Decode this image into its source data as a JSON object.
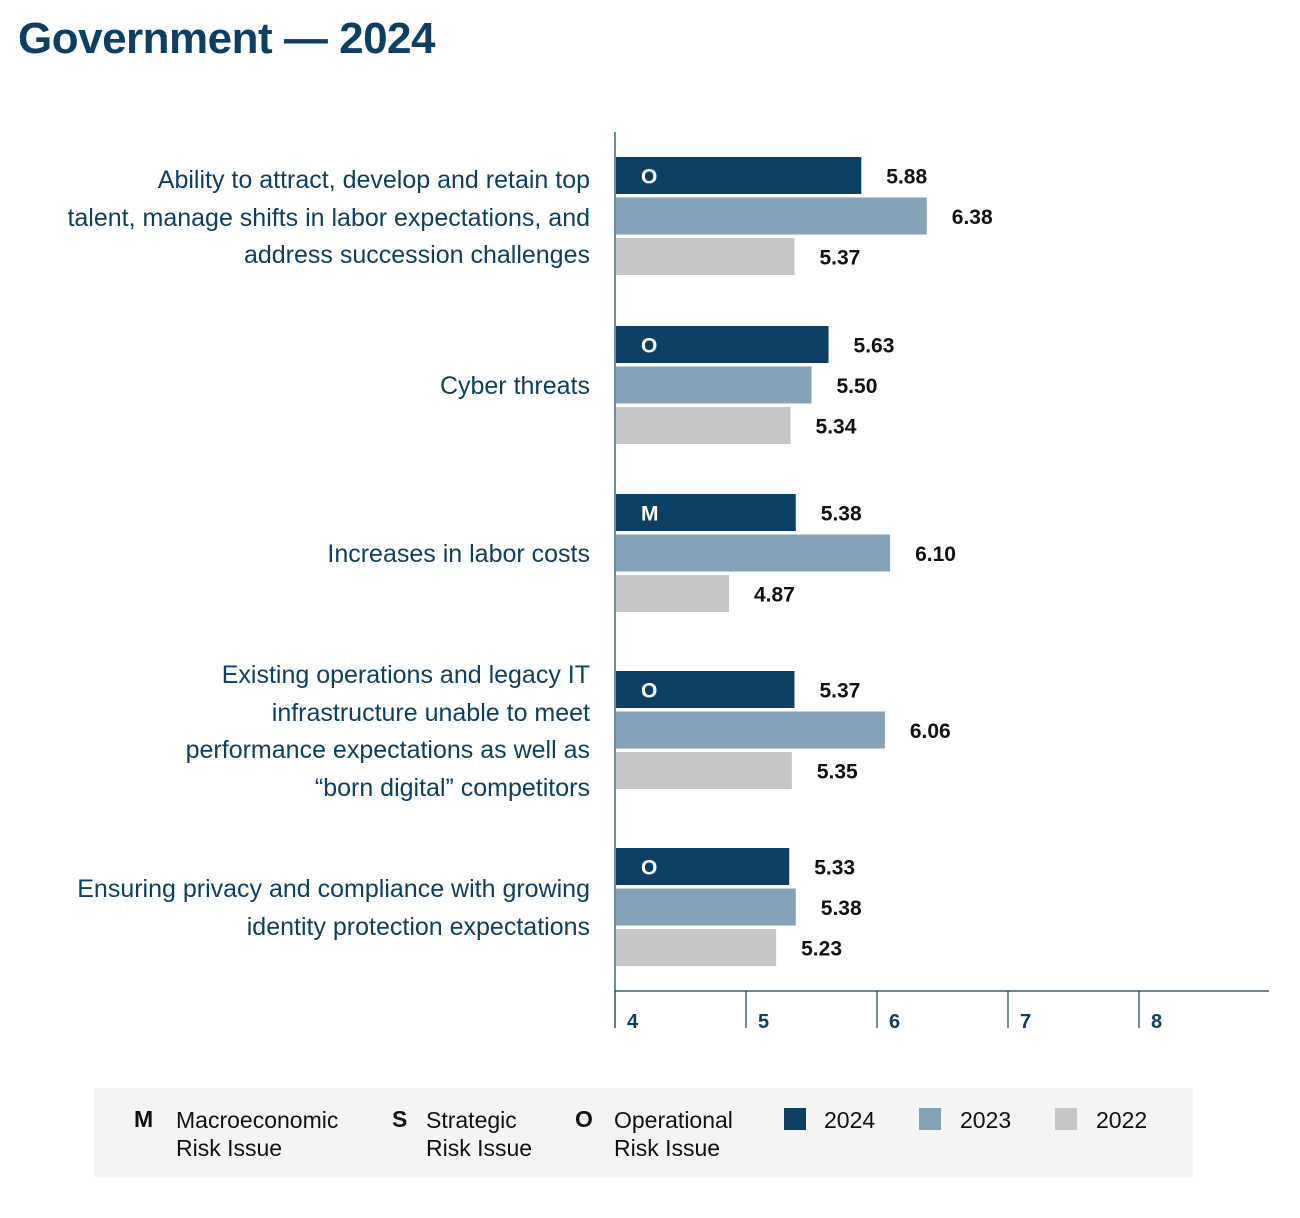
{
  "title": "Government — 2024",
  "chart_data": {
    "type": "bar",
    "orientation": "horizontal",
    "title": "Government — 2024",
    "categories": [
      "Ability to attract, develop and retain top talent, manage shifts in labor expectations, and address succession challenges",
      "Cyber threats",
      "Increases in labor costs",
      "Existing operations and legacy IT infrastructure unable to meet performance expectations as well as “born digital” competitors",
      "Ensuring privacy and compliance with growing identity protection expectations"
    ],
    "category_lines": [
      [
        "Ability to attract, develop and retain top",
        "talent, manage shifts in labor expectations, and",
        "address succession challenges"
      ],
      [
        "Cyber threats"
      ],
      [
        "Increases in labor costs"
      ],
      [
        "Existing operations and legacy IT",
        "infrastructure unable to meet",
        "performance expectations as well as",
        "“born digital” competitors"
      ],
      [
        "Ensuring privacy and compliance with growing",
        "identity protection expectations"
      ]
    ],
    "risk_types": [
      "O",
      "O",
      "M",
      "O",
      "O"
    ],
    "series": [
      {
        "name": "2024",
        "color": "#0d3f63",
        "values": [
          5.88,
          5.63,
          5.38,
          5.37,
          5.33
        ],
        "labels": [
          "5.88",
          "5.63",
          "5.38",
          "5.37",
          "5.33"
        ]
      },
      {
        "name": "2023",
        "color": "#84a2b8",
        "values": [
          6.38,
          5.5,
          6.1,
          6.06,
          5.38
        ],
        "labels": [
          "6.38",
          "5.50",
          "6.10",
          "6.06",
          "5.38"
        ]
      },
      {
        "name": "2022",
        "color": "#c6c6c6",
        "values": [
          5.37,
          5.34,
          4.87,
          5.35,
          5.23
        ],
        "labels": [
          "5.37",
          "5.34",
          "4.87",
          "5.35",
          "5.23"
        ]
      }
    ],
    "xlim": [
      4,
      9
    ],
    "xticks": [
      4,
      5,
      6,
      7,
      8
    ],
    "xtick_labels": [
      "4",
      "5",
      "6",
      "7",
      "8"
    ]
  },
  "legend": {
    "risk_keys": [
      {
        "letter": "M",
        "line1": "Macroeconomic",
        "line2": "Risk Issue"
      },
      {
        "letter": "S",
        "line1": "Strategic",
        "line2": "Risk Issue"
      },
      {
        "letter": "O",
        "line1": "Operational",
        "line2": "Risk Issue"
      }
    ],
    "years": [
      {
        "label": "2024",
        "color": "#0d3f63"
      },
      {
        "label": "2023",
        "color": "#84a2b8"
      },
      {
        "label": "2022",
        "color": "#c6c6c6"
      }
    ]
  }
}
